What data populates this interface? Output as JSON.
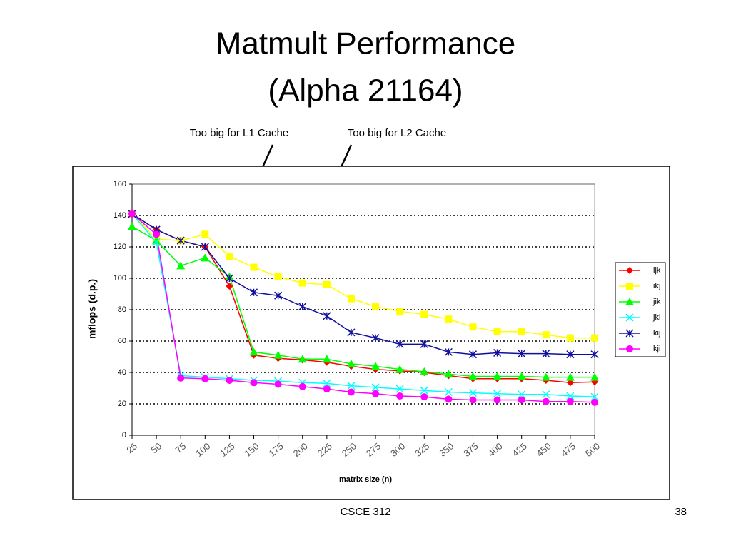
{
  "slide": {
    "title_lines": [
      "Matmult Performance",
      "(Alpha 21164)"
    ],
    "footer": "CSCE 312",
    "page": "38"
  },
  "chart_data": {
    "type": "line",
    "annotations": [
      "Too big for L1 Cache",
      "Too big for L2 Cache"
    ],
    "x_label": "matrix size (n)",
    "y_label": "mflops (d.p.)",
    "categories": [
      "25",
      "50",
      "75",
      "100",
      "125",
      "150",
      "175",
      "200",
      "225",
      "250",
      "275",
      "300",
      "325",
      "350",
      "375",
      "400",
      "425",
      "450",
      "475",
      "500"
    ],
    "ylim": [
      0,
      160
    ],
    "yticks": [
      0,
      20,
      40,
      60,
      80,
      100,
      120,
      140,
      160
    ],
    "grid": true,
    "legend": "right",
    "series": [
      {
        "name": "ijk",
        "color": "#ff0000",
        "marker": "diamond",
        "values": [
          141,
          131,
          124,
          120,
          95,
          51,
          49,
          48,
          46.5,
          44,
          42,
          41,
          40,
          38,
          36,
          36,
          36,
          35,
          33.5,
          34
        ]
      },
      {
        "name": "ikj",
        "color": "#ffff00",
        "marker": "square",
        "values": [
          141,
          125,
          124,
          128,
          114,
          107,
          101,
          97,
          96,
          87,
          82,
          79,
          77,
          74,
          69,
          66,
          66,
          64,
          62,
          62
        ]
      },
      {
        "name": "jik",
        "color": "#00ff00",
        "marker": "triangle",
        "values": [
          133,
          124,
          108,
          113,
          101,
          53,
          51,
          48.5,
          48.5,
          45.5,
          44,
          42,
          40.5,
          39,
          37.5,
          37.5,
          37.5,
          37,
          37,
          37
        ]
      },
      {
        "name": "jki",
        "color": "#00ffff",
        "marker": "x",
        "values": [
          141,
          123,
          38,
          37,
          36,
          35,
          34.5,
          33.5,
          33,
          31.5,
          30.5,
          29.5,
          28.5,
          27.5,
          27,
          26.5,
          26,
          26,
          25,
          24.5
        ]
      },
      {
        "name": "kij",
        "color": "#1010a0",
        "marker": "star",
        "values": [
          141,
          131,
          124,
          120,
          100,
          91,
          89,
          82,
          76,
          65.5,
          62,
          58,
          58,
          53,
          51.5,
          52.5,
          52,
          52,
          51.5,
          51.5
        ]
      },
      {
        "name": "kji",
        "color": "#ff00ff",
        "marker": "circle",
        "values": [
          141,
          128,
          36.5,
          36,
          35,
          33.5,
          32.5,
          31,
          29.5,
          27.5,
          26.5,
          25,
          24.5,
          23,
          22.5,
          22.5,
          22.5,
          21.5,
          21.5,
          21
        ]
      }
    ]
  }
}
